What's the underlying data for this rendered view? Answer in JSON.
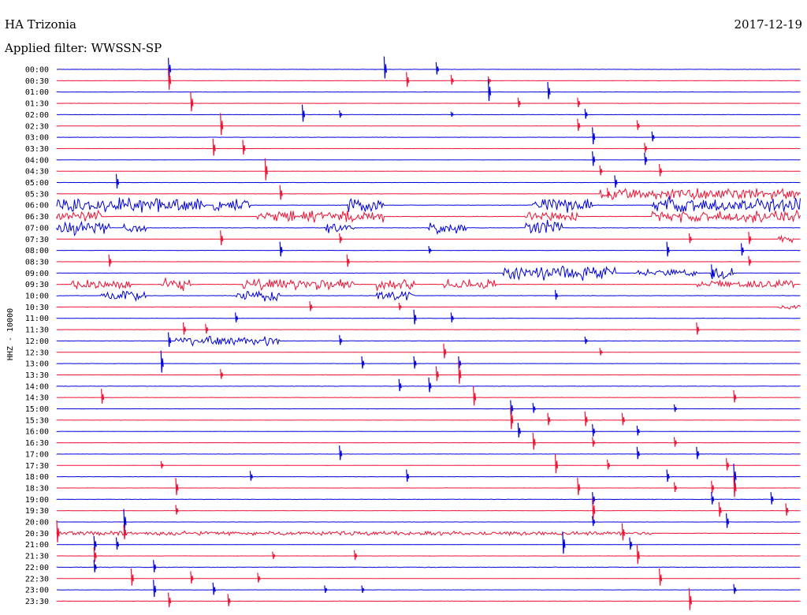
{
  "header": {
    "station": "HA Trizonia",
    "date": "2017-12-19",
    "filter": "Applied filter: WWSSN-SP"
  },
  "side_label": "HHZ - 10000",
  "colors": {
    "even": "#0000dd",
    "odd": "#ee1133"
  },
  "chart_data": {
    "type": "line",
    "ylabel": "HHZ - 10000",
    "rows": [
      {
        "label": "00:00",
        "base": 0.1,
        "events": [
          [
            0.15,
            0.8
          ],
          [
            0.44,
            0.9
          ],
          [
            0.51,
            0.5
          ]
        ],
        "bursts": []
      },
      {
        "label": "00:30",
        "base": 0.1,
        "events": [
          [
            0.15,
            0.9
          ],
          [
            0.47,
            0.6
          ],
          [
            0.53,
            0.4
          ],
          [
            0.58,
            0.3
          ]
        ],
        "bursts": []
      },
      {
        "label": "01:00",
        "base": 0.15,
        "events": [
          [
            0.58,
            0.9
          ],
          [
            0.66,
            0.7
          ]
        ],
        "bursts": []
      },
      {
        "label": "01:30",
        "base": 0.1,
        "events": [
          [
            0.18,
            0.8
          ],
          [
            0.62,
            0.4
          ],
          [
            0.7,
            0.4
          ]
        ],
        "bursts": []
      },
      {
        "label": "02:00",
        "base": 0.1,
        "events": [
          [
            0.33,
            0.7
          ],
          [
            0.38,
            0.3
          ],
          [
            0.53,
            0.2
          ],
          [
            0.71,
            0.4
          ]
        ],
        "bursts": []
      },
      {
        "label": "02:30",
        "base": 0.1,
        "events": [
          [
            0.22,
            0.9
          ],
          [
            0.7,
            0.5
          ],
          [
            0.78,
            0.4
          ]
        ],
        "bursts": []
      },
      {
        "label": "03:00",
        "base": 0.15,
        "events": [
          [
            0.72,
            0.7
          ],
          [
            0.8,
            0.4
          ]
        ],
        "bursts": []
      },
      {
        "label": "03:30",
        "base": 0.1,
        "events": [
          [
            0.21,
            0.7
          ],
          [
            0.25,
            0.6
          ],
          [
            0.79,
            0.4
          ]
        ],
        "bursts": []
      },
      {
        "label": "04:00",
        "base": 0.1,
        "events": [
          [
            0.72,
            0.6
          ],
          [
            0.79,
            0.5
          ]
        ],
        "bursts": []
      },
      {
        "label": "04:30",
        "base": 0.1,
        "events": [
          [
            0.28,
            0.9
          ],
          [
            0.73,
            0.4
          ],
          [
            0.81,
            0.5
          ]
        ],
        "bursts": []
      },
      {
        "label": "05:00",
        "base": 0.1,
        "events": [
          [
            0.08,
            0.6
          ],
          [
            0.75,
            0.5
          ]
        ],
        "bursts": []
      },
      {
        "label": "05:30",
        "base": 0.15,
        "events": [
          [
            0.3,
            0.6
          ],
          [
            0.74,
            0.4
          ]
        ],
        "bursts": [
          [
            0.73,
            1.0,
            0.55
          ]
        ]
      },
      {
        "label": "06:00",
        "base": 0.2,
        "events": [],
        "bursts": [
          [
            0.0,
            0.2,
            0.8
          ],
          [
            0.21,
            0.26,
            0.6
          ],
          [
            0.39,
            0.44,
            0.8
          ],
          [
            0.64,
            0.72,
            0.7
          ],
          [
            0.8,
            1.0,
            0.8
          ]
        ]
      },
      {
        "label": "06:30",
        "base": 0.2,
        "events": [],
        "bursts": [
          [
            0.0,
            0.06,
            0.6
          ],
          [
            0.27,
            0.44,
            0.6
          ],
          [
            0.63,
            0.7,
            0.5
          ],
          [
            0.8,
            1.0,
            0.6
          ]
        ]
      },
      {
        "label": "07:00",
        "base": 0.2,
        "events": [],
        "bursts": [
          [
            0.0,
            0.07,
            0.8
          ],
          [
            0.09,
            0.12,
            0.5
          ],
          [
            0.36,
            0.4,
            0.6
          ],
          [
            0.5,
            0.55,
            0.6
          ],
          [
            0.63,
            0.68,
            0.9
          ]
        ]
      },
      {
        "label": "07:30",
        "base": 0.1,
        "events": [
          [
            0.22,
            0.6
          ],
          [
            0.38,
            0.4
          ],
          [
            0.85,
            0.4
          ],
          [
            0.93,
            0.5
          ]
        ],
        "bursts": [
          [
            0.97,
            0.99,
            0.4
          ]
        ]
      },
      {
        "label": "08:00",
        "base": 0.1,
        "events": [
          [
            0.3,
            0.6
          ],
          [
            0.5,
            0.3
          ],
          [
            0.82,
            0.6
          ],
          [
            0.92,
            0.5
          ]
        ],
        "bursts": []
      },
      {
        "label": "08:30",
        "base": 0.1,
        "events": [
          [
            0.07,
            0.5
          ],
          [
            0.39,
            0.5
          ],
          [
            0.93,
            0.4
          ]
        ],
        "bursts": []
      },
      {
        "label": "09:00",
        "base": 0.15,
        "events": [
          [
            0.88,
            0.6
          ]
        ],
        "bursts": [
          [
            0.6,
            0.75,
            0.8
          ],
          [
            0.78,
            0.86,
            0.4
          ],
          [
            0.88,
            0.91,
            0.6
          ]
        ]
      },
      {
        "label": "09:30",
        "base": 0.2,
        "events": [],
        "bursts": [
          [
            0.02,
            0.1,
            0.5
          ],
          [
            0.14,
            0.18,
            0.6
          ],
          [
            0.25,
            0.4,
            0.6
          ],
          [
            0.43,
            0.48,
            0.6
          ],
          [
            0.52,
            0.59,
            0.5
          ],
          [
            0.86,
            0.99,
            0.4
          ]
        ]
      },
      {
        "label": "10:00",
        "base": 0.15,
        "events": [
          [
            0.67,
            0.4
          ]
        ],
        "bursts": [
          [
            0.06,
            0.12,
            0.5
          ],
          [
            0.24,
            0.3,
            0.5
          ],
          [
            0.43,
            0.48,
            0.5
          ]
        ]
      },
      {
        "label": "10:30",
        "base": 0.1,
        "events": [
          [
            0.34,
            0.4
          ],
          [
            0.46,
            0.3
          ]
        ],
        "bursts": [
          [
            0.97,
            1.0,
            0.3
          ]
        ]
      },
      {
        "label": "11:00",
        "base": 0.15,
        "events": [
          [
            0.24,
            0.4
          ],
          [
            0.48,
            0.6
          ],
          [
            0.53,
            0.4
          ]
        ],
        "bursts": []
      },
      {
        "label": "11:30",
        "base": 0.1,
        "events": [
          [
            0.17,
            0.5
          ],
          [
            0.2,
            0.4
          ],
          [
            0.86,
            0.5
          ]
        ],
        "bursts": []
      },
      {
        "label": "12:00",
        "base": 0.15,
        "events": [
          [
            0.15,
            0.6
          ],
          [
            0.38,
            0.4
          ],
          [
            0.71,
            0.3
          ]
        ],
        "bursts": [
          [
            0.16,
            0.3,
            0.5
          ]
        ]
      },
      {
        "label": "12:30",
        "base": 0.1,
        "events": [
          [
            0.52,
            0.6
          ],
          [
            0.73,
            0.3
          ]
        ],
        "bursts": []
      },
      {
        "label": "13:00",
        "base": 0.1,
        "events": [
          [
            0.14,
            0.9
          ],
          [
            0.41,
            0.5
          ],
          [
            0.48,
            0.5
          ],
          [
            0.54,
            0.5
          ]
        ],
        "bursts": []
      },
      {
        "label": "13:30",
        "base": 0.1,
        "events": [
          [
            0.22,
            0.4
          ],
          [
            0.51,
            0.6
          ],
          [
            0.54,
            0.9
          ]
        ],
        "bursts": []
      },
      {
        "label": "14:00",
        "base": 0.2,
        "events": [
          [
            0.46,
            0.5
          ],
          [
            0.5,
            0.6
          ]
        ],
        "bursts": []
      },
      {
        "label": "14:30",
        "base": 0.1,
        "events": [
          [
            0.06,
            0.6
          ],
          [
            0.56,
            0.8
          ],
          [
            0.91,
            0.5
          ]
        ],
        "bursts": []
      },
      {
        "label": "15:00",
        "base": 0.1,
        "events": [
          [
            0.61,
            0.6
          ],
          [
            0.64,
            0.4
          ],
          [
            0.83,
            0.3
          ]
        ],
        "bursts": []
      },
      {
        "label": "15:30",
        "base": 0.1,
        "events": [
          [
            0.61,
            0.9
          ],
          [
            0.66,
            0.5
          ],
          [
            0.71,
            0.6
          ],
          [
            0.76,
            0.5
          ]
        ],
        "bursts": []
      },
      {
        "label": "16:00",
        "base": 0.1,
        "events": [
          [
            0.62,
            0.6
          ],
          [
            0.72,
            0.5
          ],
          [
            0.78,
            0.4
          ]
        ],
        "bursts": []
      },
      {
        "label": "16:30",
        "base": 0.1,
        "events": [
          [
            0.64,
            0.7
          ],
          [
            0.72,
            0.4
          ],
          [
            0.83,
            0.4
          ]
        ],
        "bursts": []
      },
      {
        "label": "17:00",
        "base": 0.1,
        "events": [
          [
            0.38,
            0.6
          ],
          [
            0.78,
            0.5
          ],
          [
            0.86,
            0.5
          ]
        ],
        "bursts": []
      },
      {
        "label": "17:30",
        "base": 0.1,
        "events": [
          [
            0.14,
            0.3
          ],
          [
            0.67,
            0.8
          ],
          [
            0.74,
            0.4
          ],
          [
            0.9,
            0.5
          ]
        ],
        "bursts": []
      },
      {
        "label": "18:00",
        "base": 0.1,
        "events": [
          [
            0.26,
            0.4
          ],
          [
            0.47,
            0.5
          ],
          [
            0.82,
            0.5
          ],
          [
            0.91,
            0.9
          ]
        ],
        "bursts": []
      },
      {
        "label": "18:30",
        "base": 0.1,
        "events": [
          [
            0.16,
            0.7
          ],
          [
            0.7,
            0.7
          ],
          [
            0.83,
            0.4
          ],
          [
            0.88,
            0.5
          ],
          [
            0.91,
            0.9
          ]
        ],
        "bursts": []
      },
      {
        "label": "19:00",
        "base": 0.2,
        "events": [
          [
            0.72,
            0.5
          ],
          [
            0.88,
            0.5
          ],
          [
            0.96,
            0.5
          ]
        ],
        "bursts": []
      },
      {
        "label": "19:30",
        "base": 0.1,
        "events": [
          [
            0.16,
            0.4
          ],
          [
            0.72,
            0.9
          ],
          [
            0.89,
            0.6
          ],
          [
            0.98,
            0.5
          ]
        ],
        "bursts": []
      },
      {
        "label": "20:00",
        "base": 0.1,
        "events": [
          [
            0.09,
            0.9
          ],
          [
            0.72,
            0.4
          ],
          [
            0.9,
            0.6
          ]
        ],
        "bursts": []
      },
      {
        "label": "20:30",
        "base": 0.2,
        "events": [
          [
            0.0,
            0.9
          ],
          [
            0.09,
            0.6
          ],
          [
            0.76,
            0.7
          ]
        ],
        "bursts": [
          [
            0.0,
            0.8,
            0.2
          ]
        ]
      },
      {
        "label": "21:00",
        "base": 0.1,
        "events": [
          [
            0.05,
            0.6
          ],
          [
            0.08,
            0.5
          ],
          [
            0.68,
            0.9
          ],
          [
            0.77,
            0.5
          ]
        ],
        "bursts": []
      },
      {
        "label": "21:30",
        "base": 0.1,
        "events": [
          [
            0.05,
            0.6
          ],
          [
            0.29,
            0.3
          ],
          [
            0.4,
            0.4
          ],
          [
            0.78,
            0.8
          ]
        ],
        "bursts": []
      },
      {
        "label": "22:00",
        "base": 0.25,
        "events": [
          [
            0.05,
            0.5
          ],
          [
            0.13,
            0.5
          ]
        ],
        "bursts": []
      },
      {
        "label": "22:30",
        "base": 0.1,
        "events": [
          [
            0.1,
            0.7
          ],
          [
            0.18,
            0.5
          ],
          [
            0.27,
            0.4
          ],
          [
            0.81,
            0.7
          ]
        ],
        "bursts": []
      },
      {
        "label": "23:00",
        "base": 0.1,
        "events": [
          [
            0.13,
            0.7
          ],
          [
            0.21,
            0.5
          ],
          [
            0.36,
            0.3
          ],
          [
            0.41,
            0.3
          ],
          [
            0.91,
            0.4
          ]
        ],
        "bursts": []
      },
      {
        "label": "23:30",
        "base": 0.15,
        "events": [
          [
            0.15,
            0.6
          ],
          [
            0.23,
            0.5
          ],
          [
            0.85,
            0.9
          ]
        ],
        "bursts": []
      }
    ]
  }
}
